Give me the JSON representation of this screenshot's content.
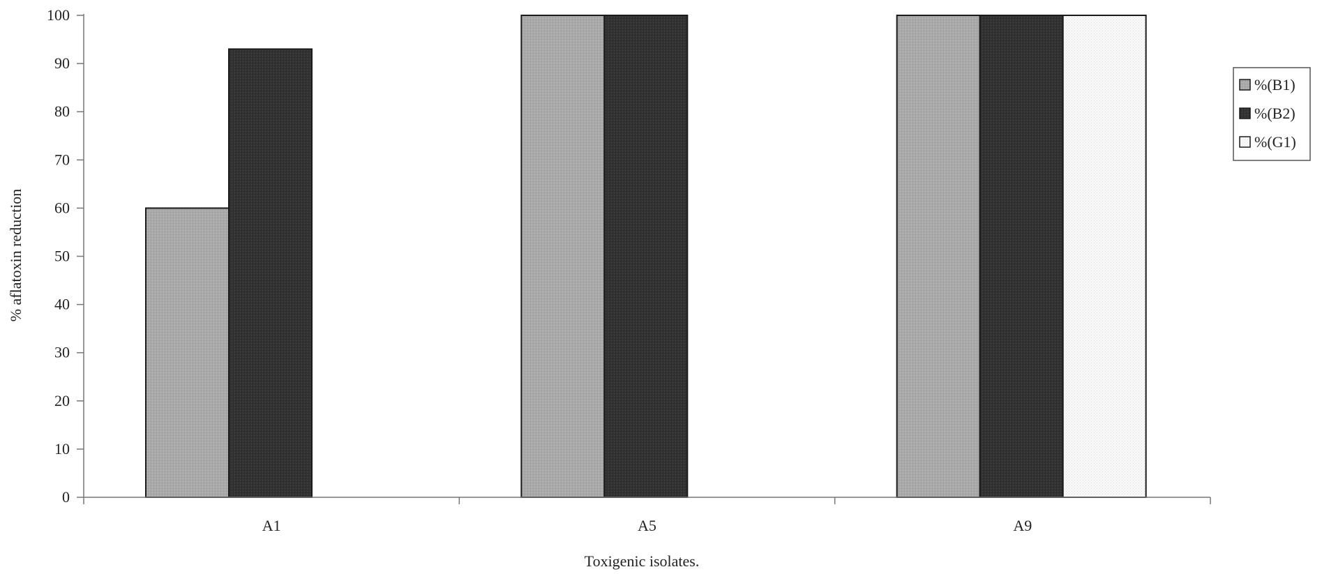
{
  "chart_data": {
    "type": "bar",
    "categories": [
      "A1",
      "A5",
      "A9"
    ],
    "series": [
      {
        "name": "%(B1)",
        "values": [
          60,
          100,
          100
        ],
        "color": "#a9a9a9"
      },
      {
        "name": "%(B2)",
        "values": [
          93,
          100,
          100
        ],
        "color": "#333333"
      },
      {
        "name": "%(G1)",
        "values": [
          null,
          null,
          100
        ],
        "color": "#f7f7f7"
      }
    ],
    "xlabel": "Toxigenic isolates.",
    "ylabel": "% aflatoxin reduction",
    "ylim": [
      0,
      100
    ],
    "yticks": [
      0,
      10,
      20,
      30,
      40,
      50,
      60,
      70,
      80,
      90,
      100
    ],
    "grid": false,
    "legend_position": "right"
  }
}
